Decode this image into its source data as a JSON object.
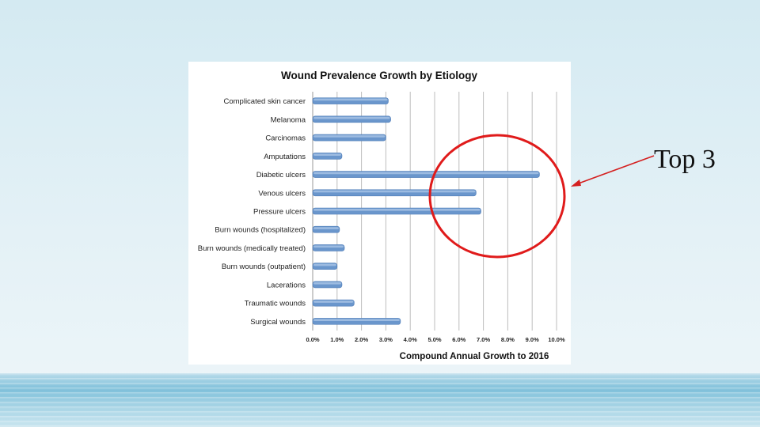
{
  "annotation": {
    "label": "Top 3",
    "circle_color": "#e01b1b",
    "arrow_color": "#d42020"
  },
  "chart_data": {
    "type": "bar",
    "orientation": "horizontal",
    "title": "Wound Prevalence Growth by Etiology",
    "xlabel": "Compound Annual Growth to 2016",
    "ylabel": "",
    "xlim": [
      0,
      10
    ],
    "x_ticks": [
      "0.0%",
      "1.0%",
      "2.0%",
      "3.0%",
      "4.0%",
      "5.0%",
      "6.0%",
      "7.0%",
      "8.0%",
      "9.0%",
      "10.0%"
    ],
    "grid": "vertical",
    "bar_color": "#6a96cc",
    "categories": [
      "Complicated skin cancer",
      "Melanoma",
      "Carcinomas",
      "Amputations",
      "Diabetic ulcers",
      "Venous ulcers",
      "Pressure ulcers",
      "Burn wounds (hospitalized)",
      "Burn wounds (medically treated)",
      "Burn wounds (outpatient)",
      "Lacerations",
      "Traumatic wounds",
      "Surgical wounds"
    ],
    "values": [
      3.1,
      3.2,
      3.0,
      1.2,
      9.3,
      6.7,
      6.9,
      1.1,
      1.3,
      1.0,
      1.2,
      1.7,
      3.6
    ]
  }
}
